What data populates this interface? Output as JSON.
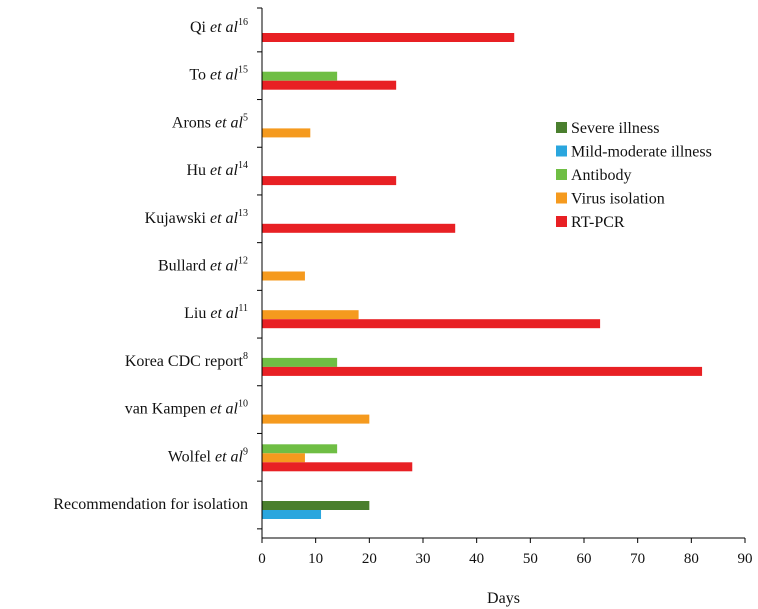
{
  "chart_data": {
    "type": "bar",
    "orientation": "horizontal",
    "xlabel": "Days",
    "xlim": [
      0,
      90
    ],
    "xticks": [
      0,
      10,
      20,
      30,
      40,
      50,
      60,
      70,
      80,
      90
    ],
    "grid": false,
    "legend_position": "right",
    "categories": [
      {
        "name": "Qi",
        "italic": "et al",
        "sup": "16"
      },
      {
        "name": "To",
        "italic": "et al",
        "sup": "15"
      },
      {
        "name": "Arons",
        "italic": "et al",
        "sup": "5"
      },
      {
        "name": "Hu",
        "italic": "et al",
        "sup": "14"
      },
      {
        "name": "Kujawski",
        "italic": "et al",
        "sup": "13"
      },
      {
        "name": "Bullard",
        "italic": "et al",
        "sup": "12"
      },
      {
        "name": "Liu",
        "italic": "et al",
        "sup": "11"
      },
      {
        "name": "Korea CDC report",
        "italic": "",
        "sup": "8"
      },
      {
        "name": "van Kampen",
        "italic": "et al",
        "sup": "10"
      },
      {
        "name": "Wolfel",
        "italic": "et al",
        "sup": "9"
      },
      {
        "name": "Recommendation for isolation",
        "italic": "",
        "sup": ""
      }
    ],
    "series": [
      {
        "name": "Severe illness",
        "color": "#4a7f2e",
        "values": [
          null,
          null,
          null,
          null,
          null,
          null,
          null,
          null,
          null,
          null,
          20
        ]
      },
      {
        "name": "Mild-moderate illness",
        "color": "#2aa6de",
        "values": [
          null,
          null,
          null,
          null,
          null,
          null,
          null,
          null,
          null,
          null,
          11
        ]
      },
      {
        "name": "Antibody",
        "color": "#6fbe44",
        "values": [
          null,
          14,
          null,
          null,
          null,
          null,
          null,
          14,
          null,
          14,
          null
        ]
      },
      {
        "name": "Virus isolation",
        "color": "#f59a1e",
        "values": [
          null,
          null,
          9,
          null,
          null,
          8,
          18,
          null,
          20,
          8,
          null
        ]
      },
      {
        "name": "RT-PCR",
        "color": "#e82024",
        "values": [
          47,
          25,
          null,
          25,
          36,
          null,
          63,
          82,
          null,
          28,
          null
        ]
      }
    ]
  }
}
